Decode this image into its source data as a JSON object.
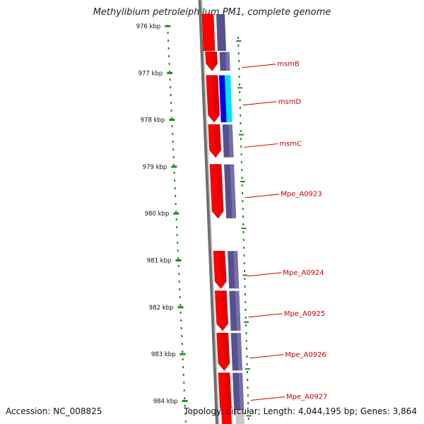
{
  "title": "Methylibium petroleiphilum PM1, complete genome",
  "accession": {
    "label": "Accession:",
    "value": "NC_008825"
  },
  "summary": {
    "topology_label": "Topology:",
    "topology": "circular",
    "length_label": "Length:",
    "length": "4,044,195 bp",
    "genes_label": "Genes:",
    "genes": "3,864"
  },
  "ruler": {
    "ticks": [
      {
        "label": "976 kbp",
        "kbp": 976
      },
      {
        "label": "977 kbp",
        "kbp": 977
      },
      {
        "label": "978 kbp",
        "kbp": 978
      },
      {
        "label": "979 kbp",
        "kbp": 979
      },
      {
        "label": "980 kbp",
        "kbp": 980
      },
      {
        "label": "981 kbp",
        "kbp": 981
      },
      {
        "label": "982 kbp",
        "kbp": 982
      },
      {
        "label": "983 kbp",
        "kbp": 983
      },
      {
        "label": "984 kbp",
        "kbp": 984
      }
    ]
  },
  "genes": [
    {
      "name": "msmB",
      "start_kbp": 976.55,
      "end_kbp": 976.95
    },
    {
      "name": "msmD",
      "start_kbp": 977.05,
      "end_kbp": 978.05
    },
    {
      "name": "msmC",
      "start_kbp": 978.1,
      "end_kbp": 978.8
    },
    {
      "name": "Mpe_A0923",
      "start_kbp": 978.95,
      "end_kbp": 980.1
    },
    {
      "name": "Mpe_A0924",
      "start_kbp": 980.8,
      "end_kbp": 981.6
    },
    {
      "name": "Mpe_A0925",
      "start_kbp": 981.65,
      "end_kbp": 982.5
    },
    {
      "name": "Mpe_A0926",
      "start_kbp": 982.55,
      "end_kbp": 983.35
    },
    {
      "name": "Mpe_A0927",
      "start_kbp": 983.4,
      "end_kbp": 984.3
    }
  ],
  "colors": {
    "gene_arrow": "#ff0000",
    "gene_arrow_shade": "#b80000",
    "feature_block": "#55508f",
    "feature_light": "#8a86b8",
    "highlight_blue": "#0000ee",
    "highlight_cyan": "#00e5ff",
    "backbone": "#8f8f8f",
    "ruler_dots": "#1f8a1f",
    "label_text": "#cc0000"
  }
}
